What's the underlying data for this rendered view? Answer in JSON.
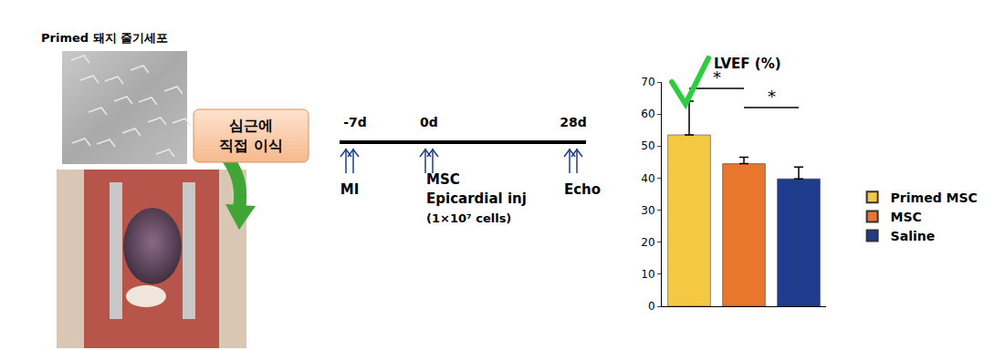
{
  "chart_data": {
    "type": "bar",
    "title": "LVEF (%)",
    "categories": [
      "Primed MSC",
      "MSC",
      "Saline"
    ],
    "values": [
      53.5,
      44.5,
      39.8
    ],
    "errors": [
      10.5,
      2.0,
      3.7
    ],
    "colors": [
      "#F4C842",
      "#E8762C",
      "#1F3C8C"
    ],
    "ylim": [
      0,
      70
    ],
    "yticks": [
      0,
      10,
      20,
      30,
      40,
      50,
      60,
      70
    ],
    "grid": false,
    "legend": "right",
    "tick_labels": "y",
    "significance": [
      {
        "from": "Primed MSC",
        "to": "MSC",
        "y": 68,
        "label": "*"
      },
      {
        "from": "MSC",
        "to": "Saline",
        "y": 62,
        "label": "*"
      }
    ]
  },
  "panel": {
    "title": "Primed 돼지 줄기세포",
    "callout": [
      "심근에",
      "직접 이식"
    ]
  },
  "timeline": {
    "points": [
      {
        "day": "-7d",
        "event": [
          "MI"
        ]
      },
      {
        "day": "0d",
        "event": [
          "MSC",
          "Epicardial inj",
          "(1×10⁷ cells)"
        ]
      },
      {
        "day": "28d",
        "event": [
          "Echo"
        ]
      }
    ]
  }
}
